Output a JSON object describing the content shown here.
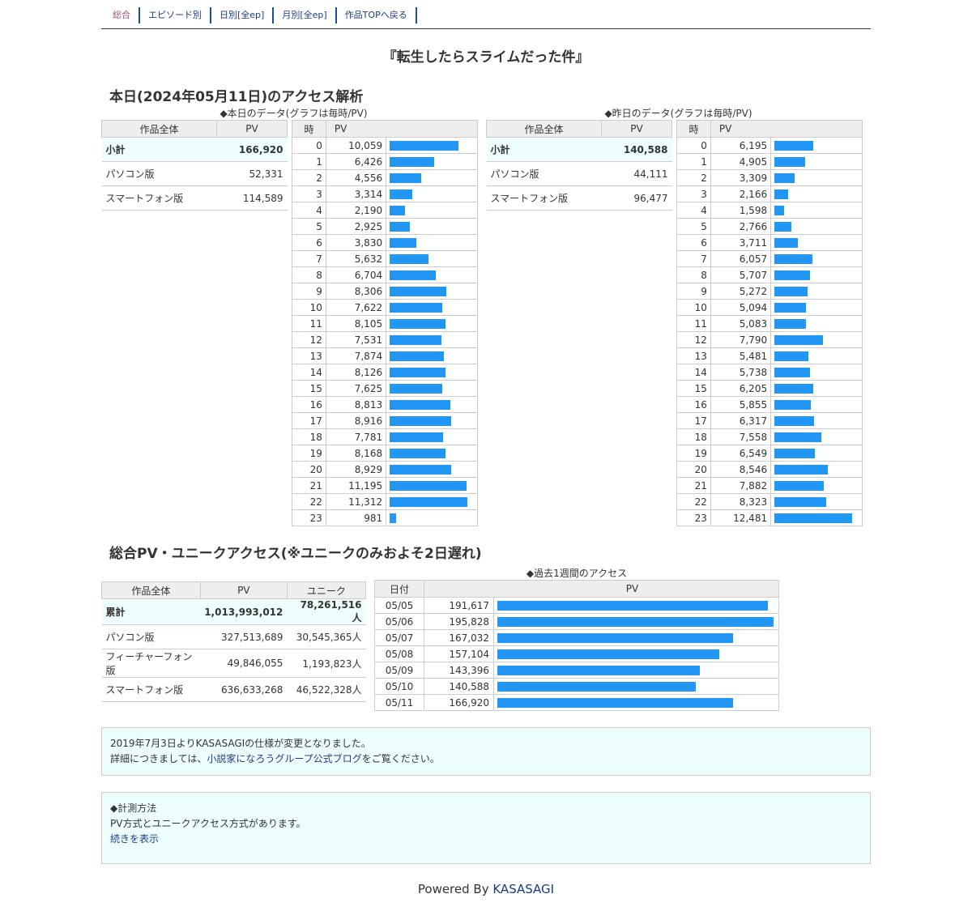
{
  "nav": [
    "総合",
    "エピソード別",
    "日別[全ep]",
    "月別[全ep]",
    "作品TOPへ戻る"
  ],
  "work_title": "『転生したらスライムだった件』",
  "today_heading": "本日(2024年05月11日)のアクセス解析",
  "today_caption": "◆本日のデータ(グラフは毎時/PV)",
  "yesterday_caption": "◆昨日のデータ(グラフは毎時/PV)",
  "summary_headers": [
    "作品全体",
    "PV"
  ],
  "hourly_headers": [
    "時",
    "PV"
  ],
  "today_summary": [
    {
      "label": "小計",
      "value": "166,920"
    },
    {
      "label": "パソコン版",
      "value": "52,331"
    },
    {
      "label": "スマートフォン版",
      "value": "114,589"
    }
  ],
  "yesterday_summary": [
    {
      "label": "小計",
      "value": "140,588"
    },
    {
      "label": "パソコン版",
      "value": "44,111"
    },
    {
      "label": "スマートフォン版",
      "value": "96,477"
    }
  ],
  "chart_data": [
    {
      "type": "bar",
      "x": [
        0,
        1,
        2,
        3,
        4,
        5,
        6,
        7,
        8,
        9,
        10,
        11,
        12,
        13,
        14,
        15,
        16,
        17,
        18,
        19,
        20,
        21,
        22,
        23
      ],
      "values": [
        10059,
        6426,
        4556,
        3314,
        2190,
        2925,
        3830,
        5632,
        6704,
        8306,
        7622,
        8105,
        7531,
        7874,
        8126,
        7625,
        8813,
        8916,
        7781,
        8168,
        8929,
        11195,
        11312,
        981
      ],
      "labels": [
        "10,059",
        "6,426",
        "4,556",
        "3,314",
        "2,190",
        "2,925",
        "3,830",
        "5,632",
        "6,704",
        "8,306",
        "7,622",
        "8,105",
        "7,531",
        "7,874",
        "8,126",
        "7,625",
        "8,813",
        "8,916",
        "7,781",
        "8,168",
        "8,929",
        "11,195",
        "11,312",
        "981"
      ]
    },
    {
      "type": "bar",
      "x": [
        0,
        1,
        2,
        3,
        4,
        5,
        6,
        7,
        8,
        9,
        10,
        11,
        12,
        13,
        14,
        15,
        16,
        17,
        18,
        19,
        20,
        21,
        22,
        23
      ],
      "values": [
        6195,
        4905,
        3309,
        2166,
        1598,
        2766,
        3711,
        6057,
        5707,
        5272,
        5094,
        5083,
        7790,
        5481,
        5738,
        6205,
        5855,
        6317,
        7558,
        6549,
        8546,
        7882,
        8323,
        12481
      ],
      "labels": [
        "6,195",
        "4,905",
        "3,309",
        "2,166",
        "1,598",
        "2,766",
        "3,711",
        "6,057",
        "5,707",
        "5,272",
        "5,094",
        "5,083",
        "7,790",
        "5,481",
        "5,738",
        "6,205",
        "5,855",
        "6,317",
        "7,558",
        "6,549",
        "8,546",
        "7,882",
        "8,323",
        "12,481"
      ]
    },
    {
      "type": "bar",
      "categories": [
        "05/05",
        "05/06",
        "05/07",
        "05/08",
        "05/09",
        "05/10",
        "05/11"
      ],
      "values": [
        191617,
        195828,
        167032,
        157104,
        143396,
        140588,
        166920
      ],
      "labels": [
        "191,617",
        "195,828",
        "167,032",
        "157,104",
        "143,396",
        "140,588",
        "166,920"
      ]
    }
  ],
  "total_heading": "総合PV・ユニークアクセス(※ユニークのみおよそ2日遅れ)",
  "total_headers": [
    "作品全体",
    "PV",
    "ユニーク"
  ],
  "totals": [
    {
      "label": "累計",
      "pv": "1,013,993,012",
      "unique": "78,261,516人"
    },
    {
      "label": "パソコン版",
      "pv": "327,513,689",
      "unique": "30,545,365人"
    },
    {
      "label": "フィーチャーフォン版",
      "pv": "49,846,055",
      "unique": "1,193,823人"
    },
    {
      "label": "スマートフォン版",
      "pv": "636,633,268",
      "unique": "46,522,328人"
    }
  ],
  "weekly_caption": "◆過去1週間のアクセス",
  "weekly_headers": [
    "日付",
    "PV"
  ],
  "notice": {
    "line1": "2019年7月3日よりKASASAGIの仕様が変更となりました。",
    "line2_pre": "詳細につきましては、",
    "line2_link": "小説家になろうグループ公式ブログ",
    "line2_post": "をご覧ください。"
  },
  "method": {
    "title": "◆計測方法",
    "text": "PV方式とユニークアクセス方式があります。",
    "more": "続きを表示"
  },
  "footer": {
    "prefix": "Powered By ",
    "link": "KASASAGI"
  },
  "colors": {
    "bar": "#2196f3",
    "highlight": "#eefefe"
  }
}
